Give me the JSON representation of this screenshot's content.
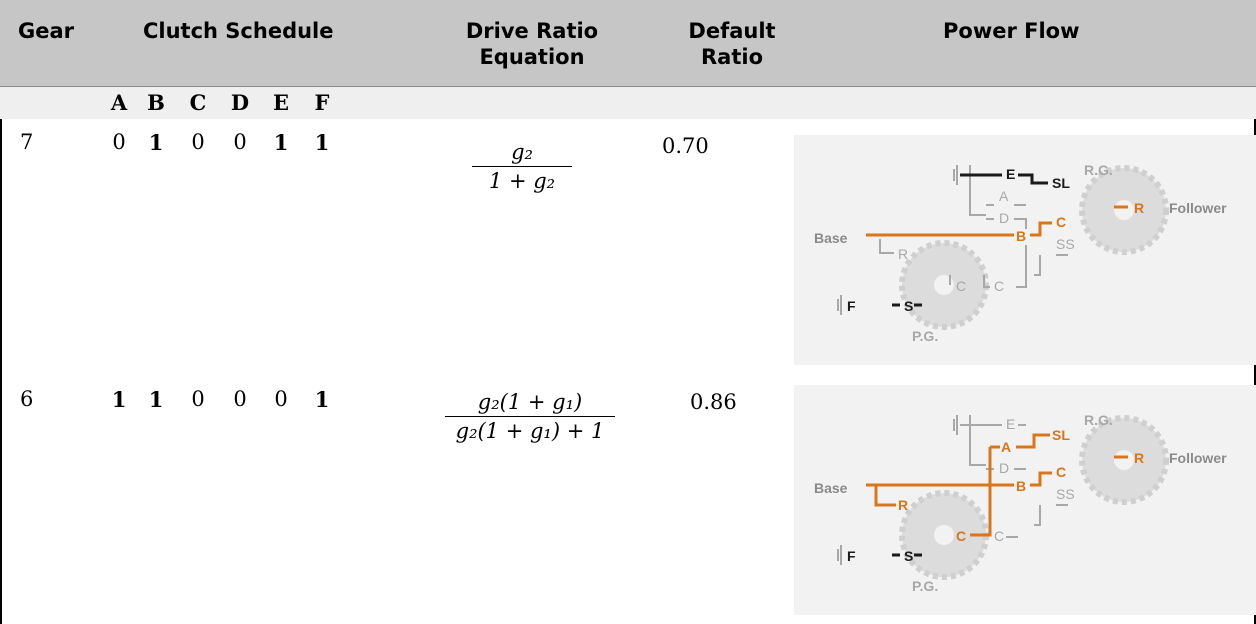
{
  "header": {
    "gear": "Gear",
    "clutch_schedule": "Clutch Schedule",
    "drive_ratio_line1": "Drive Ratio",
    "drive_ratio_line2": "Equation",
    "default_ratio_line1": "Default",
    "default_ratio_line2": "Ratio",
    "power_flow": "Power Flow"
  },
  "clutch_letters": [
    "A",
    "B",
    "C",
    "D",
    "E",
    "F"
  ],
  "rows": [
    {
      "gear": "7",
      "clutches": [
        "0",
        "1",
        "0",
        "0",
        "1",
        "1"
      ],
      "equation_num": "g₂",
      "equation_den": "1 + g₂",
      "default_ratio": "0.70"
    },
    {
      "gear": "6",
      "clutches": [
        "1",
        "1",
        "0",
        "0",
        "0",
        "1"
      ],
      "equation_num": "g₂(1 + g₁)",
      "equation_den": "g₂(1 + g₁) + 1",
      "default_ratio": "0.86"
    }
  ],
  "diagram_labels": {
    "rg": "R.G.",
    "pg": "P.G.",
    "base": "Base",
    "follower": "Follower",
    "e": "E",
    "a": "A",
    "d": "D",
    "b": "B",
    "c": "C",
    "sl": "SL",
    "ss": "SS",
    "r": "R",
    "s": "S",
    "f": "F"
  },
  "colors": {
    "active": "#d9751a",
    "engaged_dark": "#1a1a1a",
    "inactive": "#a8a8a8",
    "header_bg": "#c6c6c6"
  }
}
